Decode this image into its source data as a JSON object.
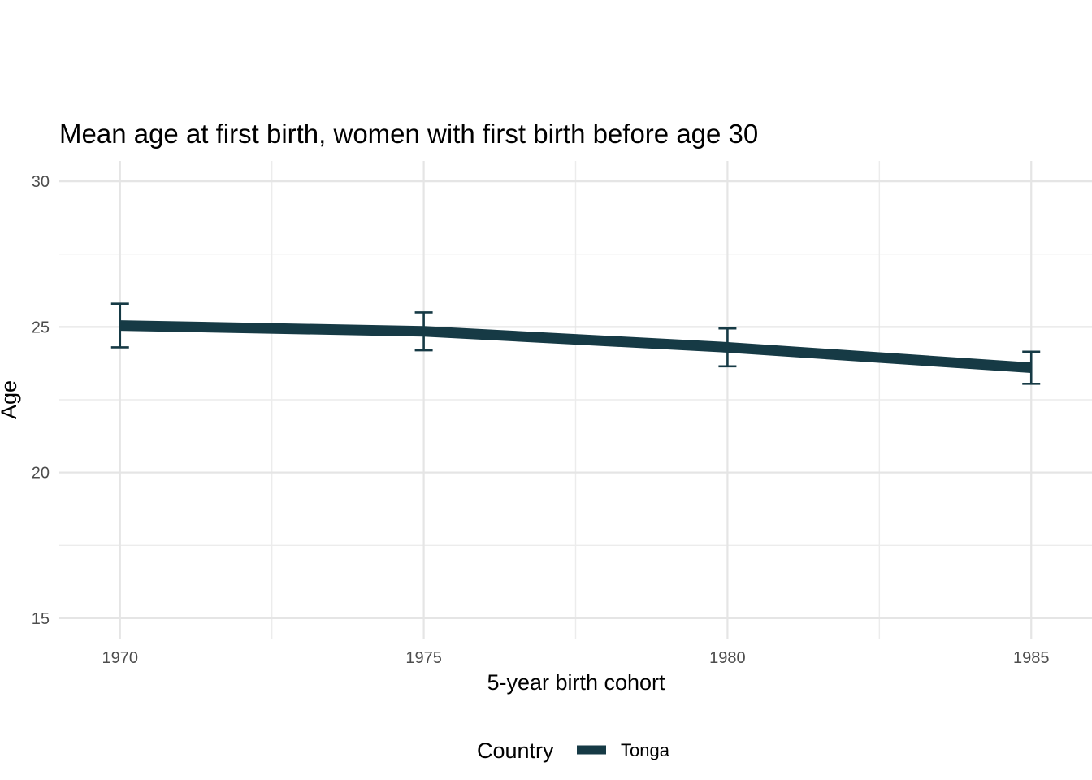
{
  "chart_data": {
    "type": "line",
    "title": "Mean age at first birth, women with first birth before age 30",
    "xlabel": "5-year birth cohort",
    "ylabel": "Age",
    "x": [
      1970,
      1975,
      1980,
      1985
    ],
    "xlim": [
      1969,
      1986
    ],
    "ylim": [
      14.3,
      30.7
    ],
    "x_ticks": [
      1970,
      1975,
      1980,
      1985
    ],
    "y_ticks": [
      15,
      20,
      25,
      30
    ],
    "grid": true,
    "legend": {
      "title": "Country",
      "position": "bottom"
    },
    "series": [
      {
        "name": "Tonga",
        "color": "#163a45",
        "values": [
          25.05,
          24.85,
          24.3,
          23.6
        ],
        "error_low": [
          24.3,
          24.2,
          23.65,
          23.05
        ],
        "error_high": [
          25.8,
          25.5,
          24.95,
          24.15
        ]
      }
    ]
  }
}
